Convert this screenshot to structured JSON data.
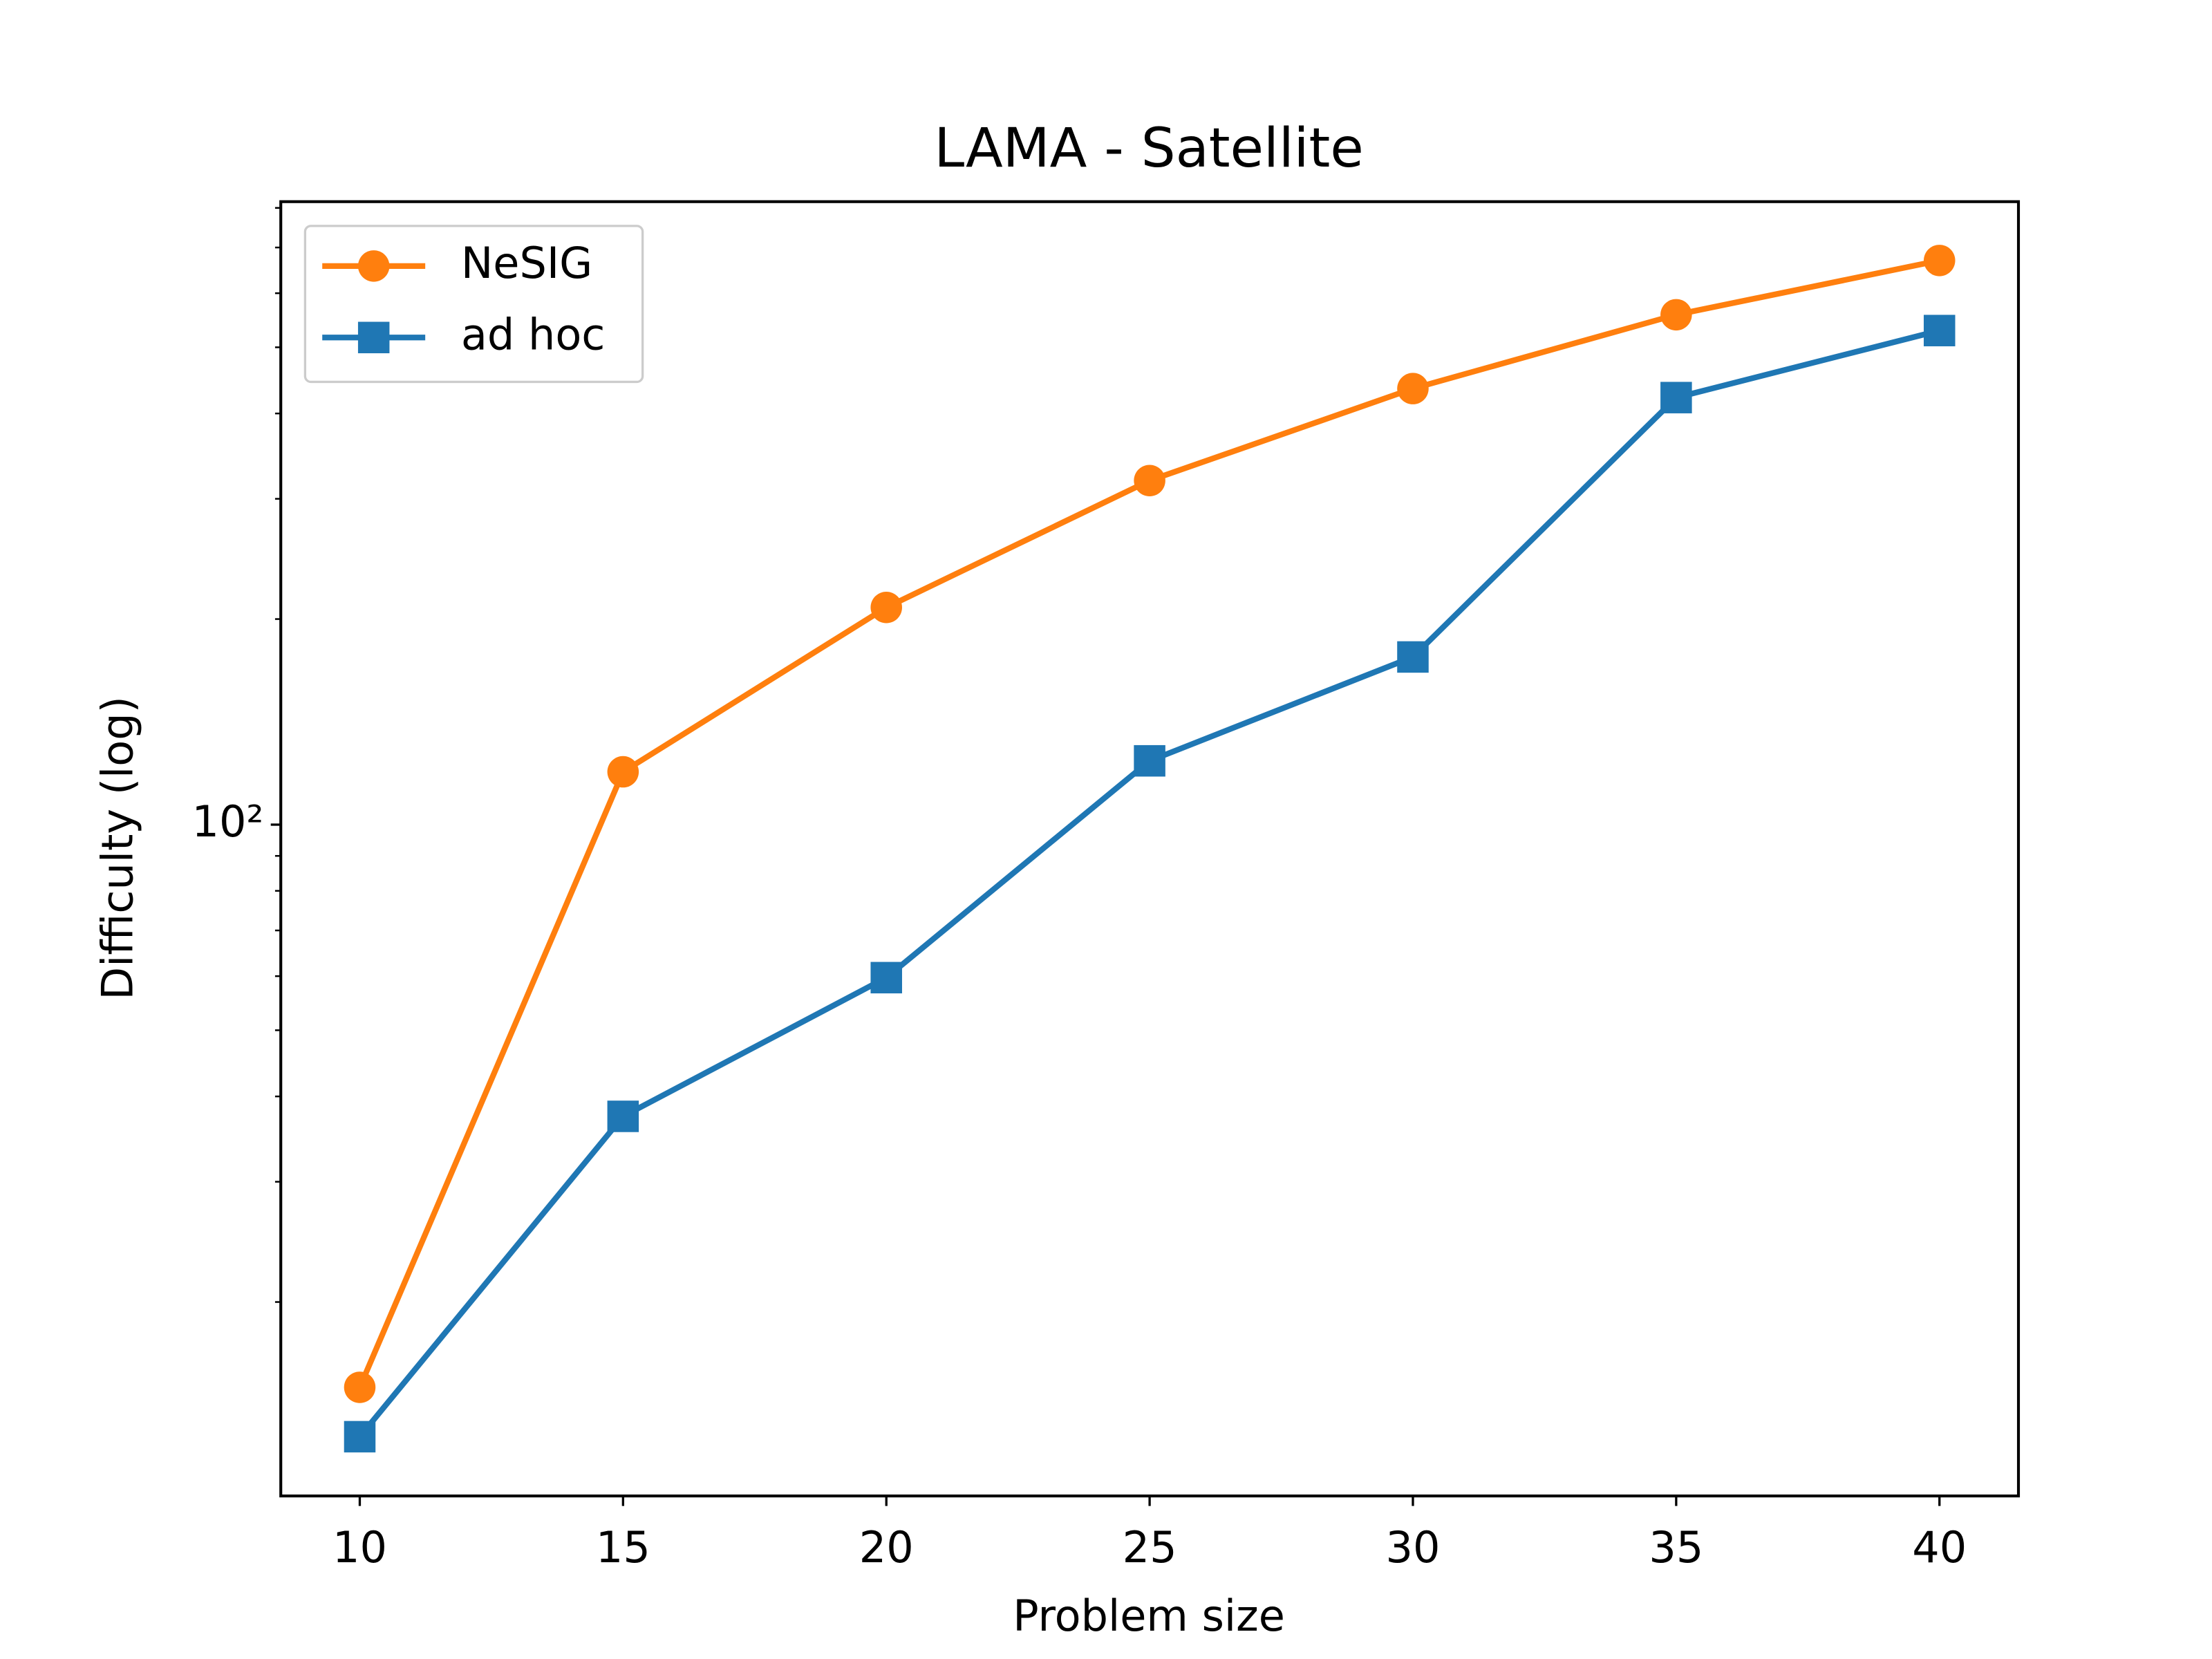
{
  "chart_data": {
    "type": "line",
    "title": "LAMA - Satellite",
    "x_label": "Problem size",
    "y_label": "Difficulty (log)",
    "x": [
      10,
      15,
      20,
      25,
      30,
      35,
      40
    ],
    "series": [
      {
        "name": "NeSIG",
        "color": "#ff7f0e",
        "marker": "circle",
        "values": [
          15,
          119.5,
          208,
          319,
          435,
          558,
          670
        ]
      },
      {
        "name": "ad hoc",
        "color": "#1f77b4",
        "marker": "square",
        "values": [
          12.7,
          37.4,
          59.7,
          124,
          176,
          422,
          529
        ]
      }
    ],
    "xlim": [
      8.5,
      41.5
    ],
    "xticks": [
      10,
      15,
      20,
      25,
      30,
      35,
      40
    ],
    "ylim": [
      10.4,
      817
    ],
    "yscale": "log",
    "yticks": [
      {
        "value": 100,
        "label": "10²"
      }
    ],
    "minor_yticks": [
      20,
      30,
      40,
      50,
      60,
      70,
      80,
      90,
      200,
      300,
      400,
      500,
      600,
      700,
      800
    ],
    "legend": "upper left",
    "grid": false
  }
}
